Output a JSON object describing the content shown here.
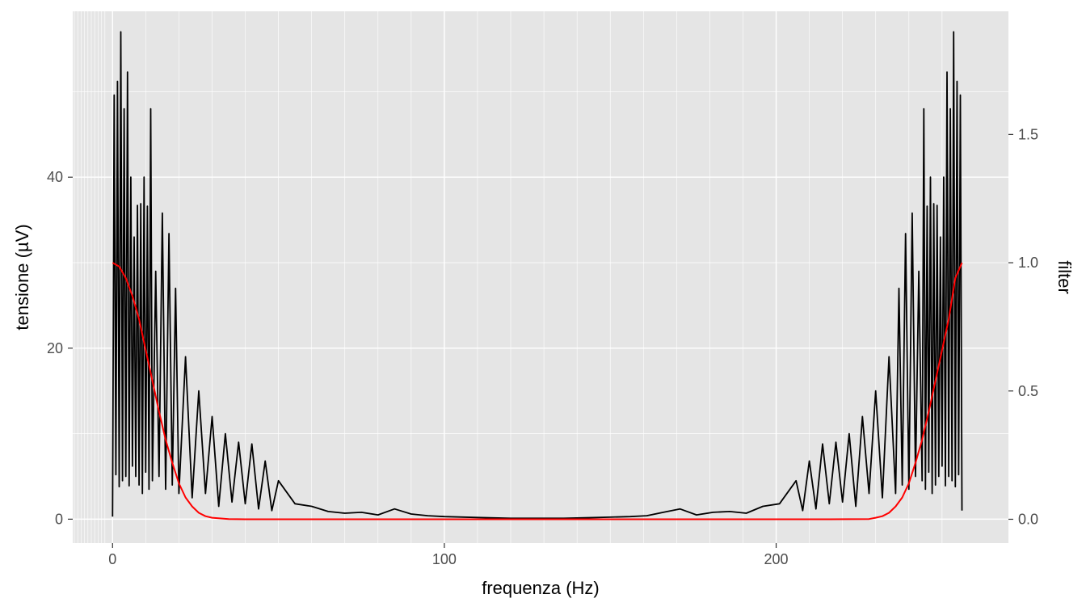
{
  "chart_data": {
    "type": "line",
    "title": "",
    "xlabel": "frequenza (Hz)",
    "ylabel": "tensione (µV)",
    "y2label": "filter",
    "xlim": [
      -12,
      270
    ],
    "ylim": [
      -2.8,
      59.4
    ],
    "y2lim": [
      -0.093,
      1.98
    ],
    "x_ticks": [
      0,
      100,
      200
    ],
    "y_ticks": [
      0,
      20,
      40
    ],
    "y2_ticks": [
      0.0,
      0.5,
      1.0,
      1.5
    ],
    "x_tick_labels": [
      "0",
      "100",
      "200"
    ],
    "y_tick_labels": [
      "0",
      "20",
      "40"
    ],
    "y2_tick_labels": [
      "0.0",
      "0.5",
      "1.0",
      "1.5"
    ],
    "grid": true,
    "legend": "none",
    "colors": {
      "panel": "#e5e5e5",
      "grid": "#ffffff",
      "spectrum": "#000000",
      "filter": "#ff0000"
    },
    "series": [
      {
        "axis": "left",
        "color": "#000000",
        "description": "FFT amplitude spectrum, symmetric about 128 Hz",
        "x": [
          0,
          0.5,
          1,
          1.5,
          2,
          2.5,
          3,
          3.5,
          4,
          4.5,
          5,
          5.5,
          6,
          6.5,
          7,
          7.5,
          8,
          8.5,
          9,
          9.5,
          10,
          10.5,
          11,
          11.5,
          12,
          13,
          14,
          15,
          16,
          17,
          18,
          19,
          20,
          22,
          24,
          26,
          28,
          30,
          32,
          34,
          36,
          38,
          40,
          42,
          44,
          46,
          48,
          50,
          55,
          60,
          65,
          70,
          75,
          80,
          85,
          90,
          95,
          100,
          110,
          120,
          128,
          136,
          146,
          156,
          161,
          166,
          171,
          176,
          181,
          186,
          191,
          196,
          201,
          206,
          208,
          210,
          212,
          214,
          216,
          218,
          220,
          222,
          224,
          226,
          228,
          230,
          232,
          234,
          236,
          237,
          238,
          239,
          240,
          241,
          242,
          243,
          244,
          244.5,
          245,
          245.5,
          246,
          246.5,
          247,
          247.5,
          248,
          248.5,
          249,
          249.5,
          250,
          250.5,
          251,
          251.5,
          252,
          252.5,
          253,
          253.5,
          254,
          254.5,
          255,
          255.5,
          256
        ],
        "y": [
          0.3,
          49.6,
          5.2,
          51.2,
          3.8,
          57.0,
          4.5,
          48.0,
          5.0,
          52.3,
          3.9,
          40.0,
          6.2,
          33.0,
          5.0,
          36.7,
          4.0,
          36.9,
          3.0,
          40.0,
          5.5,
          36.6,
          3.5,
          48.0,
          4.5,
          29.0,
          5.0,
          35.8,
          3.5,
          33.4,
          4.0,
          27.0,
          3.0,
          19.0,
          2.5,
          15.0,
          3.0,
          12.0,
          1.5,
          10.0,
          2.0,
          9.0,
          1.8,
          8.8,
          1.2,
          6.8,
          1.0,
          4.5,
          1.8,
          1.5,
          0.9,
          0.7,
          0.8,
          0.5,
          1.2,
          0.6,
          0.4,
          0.3,
          0.2,
          0.1,
          0.1,
          0.1,
          0.2,
          0.3,
          0.4,
          0.8,
          1.2,
          0.5,
          0.8,
          0.9,
          0.7,
          1.5,
          1.8,
          4.5,
          1.0,
          6.8,
          1.2,
          8.8,
          1.8,
          9.0,
          2.0,
          10.0,
          1.5,
          12.0,
          3.0,
          15.0,
          2.5,
          19.0,
          3.0,
          27.0,
          4.0,
          33.4,
          3.5,
          35.8,
          5.0,
          29.0,
          4.5,
          48.0,
          3.5,
          36.6,
          5.5,
          40.0,
          3.0,
          36.9,
          4.0,
          36.7,
          5.0,
          33.0,
          6.2,
          40.0,
          3.9,
          52.3,
          5.0,
          48.0,
          4.5,
          57.0,
          3.8,
          51.2,
          5.2,
          49.6,
          1.0
        ]
      },
      {
        "axis": "right",
        "color": "#ff0000",
        "description": "filter response (Gaussian-shaped, symmetric)",
        "x": [
          0,
          2,
          4,
          6,
          8,
          10,
          12,
          14,
          16,
          18,
          20,
          22,
          24,
          26,
          28,
          30,
          35,
          40,
          60,
          128,
          216,
          228,
          230,
          232,
          234,
          236,
          238,
          240,
          242,
          244,
          246,
          248,
          250,
          252,
          254,
          256
        ],
        "y": [
          1.0,
          0.985,
          0.94,
          0.87,
          0.78,
          0.66,
          0.54,
          0.42,
          0.31,
          0.22,
          0.14,
          0.085,
          0.05,
          0.025,
          0.012,
          0.006,
          0.001,
          0.0,
          0.0,
          0.0,
          0.0,
          0.001,
          0.006,
          0.012,
          0.025,
          0.05,
          0.085,
          0.14,
          0.22,
          0.31,
          0.42,
          0.54,
          0.66,
          0.78,
          0.94,
          1.0
        ]
      }
    ]
  }
}
